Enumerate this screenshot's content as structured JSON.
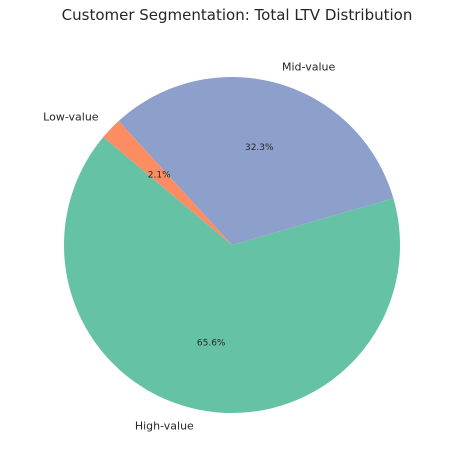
{
  "chart_data": {
    "type": "pie",
    "title": "Customer Segmentation: Total LTV Distribution",
    "start_angle_deg": 140,
    "direction": "counterclockwise",
    "slices": [
      {
        "label": "High-value",
        "value": 65.6,
        "pct_label": "65.6%",
        "color": "#66c2a5"
      },
      {
        "label": "Mid-value",
        "value": 32.3,
        "pct_label": "32.3%",
        "color": "#8da0cb"
      },
      {
        "label": "Low-value",
        "value": 2.1,
        "pct_label": "2.1%",
        "color": "#fc8d62"
      }
    ]
  }
}
